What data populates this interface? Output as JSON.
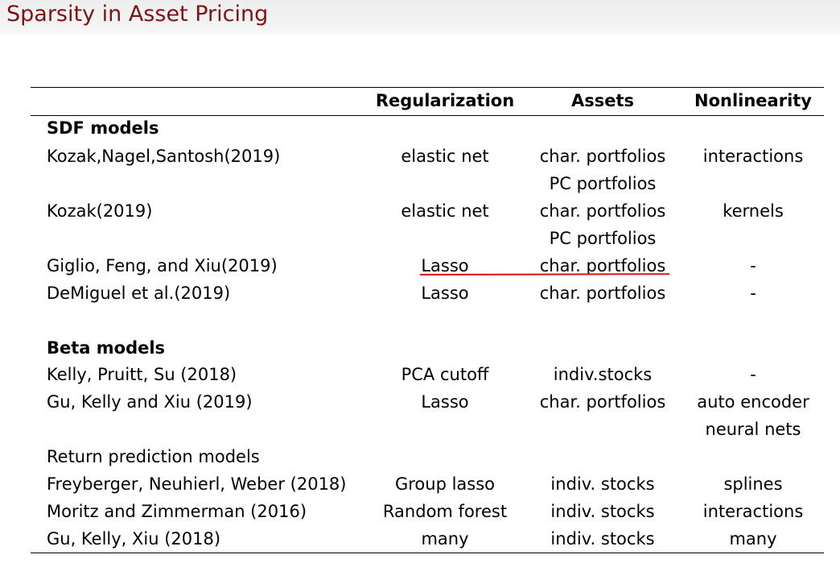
{
  "slide": {
    "title": "Sparsity in Asset Pricing"
  },
  "table": {
    "headers": [
      "",
      "Regularization",
      "Assets",
      "Nonlinearity"
    ],
    "rows": [
      {
        "label": "SDF models",
        "kind": "section",
        "reg": "",
        "assets": "",
        "nonlin": ""
      },
      {
        "label": "Kozak,Nagel,Santosh(2019)",
        "kind": "data",
        "reg": "elastic net",
        "assets": "char. portfolios",
        "nonlin": "interactions"
      },
      {
        "label": "",
        "kind": "cont",
        "reg": "",
        "assets": "PC portfolios",
        "nonlin": ""
      },
      {
        "label": "Kozak(2019)",
        "kind": "data",
        "reg": "elastic net",
        "assets": "char. portfolios",
        "nonlin": "kernels"
      },
      {
        "label": "",
        "kind": "cont",
        "reg": "",
        "assets": "PC portfolios",
        "nonlin": ""
      },
      {
        "label": "Giglio, Feng, and Xiu(2019)",
        "kind": "data",
        "reg": "Lasso",
        "assets": "char. portfolios",
        "nonlin": "-"
      },
      {
        "label": "DeMiguel et al.(2019)",
        "kind": "data",
        "reg": "Lasso",
        "assets": "char. portfolios",
        "nonlin": "-"
      },
      {
        "label": "Beta models",
        "kind": "section",
        "reg": "",
        "assets": "",
        "nonlin": ""
      },
      {
        "label": "Kelly, Pruitt, Su (2018)",
        "kind": "data",
        "reg": "PCA cutoff",
        "assets": "indiv.stocks",
        "nonlin": "-"
      },
      {
        "label": "Gu, Kelly and Xiu (2019)",
        "kind": "data",
        "reg": "Lasso",
        "assets": "char. portfolios",
        "nonlin": "auto encoder"
      },
      {
        "label": "",
        "kind": "cont",
        "reg": "",
        "assets": "",
        "nonlin": "neural nets"
      },
      {
        "label": "Return prediction models",
        "kind": "plain",
        "reg": "",
        "assets": "",
        "nonlin": ""
      },
      {
        "label": "Freyberger, Neuhierl, Weber (2018)",
        "kind": "data",
        "reg": "Group lasso",
        "assets": "indiv. stocks",
        "nonlin": "splines"
      },
      {
        "label": "Moritz and Zimmerman (2016)",
        "kind": "data",
        "reg": "Random forest",
        "assets": "indiv. stocks",
        "nonlin": "interactions"
      },
      {
        "label": "Gu, Kelly, Xiu (2018)",
        "kind": "data",
        "reg": "many",
        "assets": "indiv. stocks",
        "nonlin": "many"
      }
    ]
  },
  "annotation": {
    "color": "#dd1111"
  }
}
